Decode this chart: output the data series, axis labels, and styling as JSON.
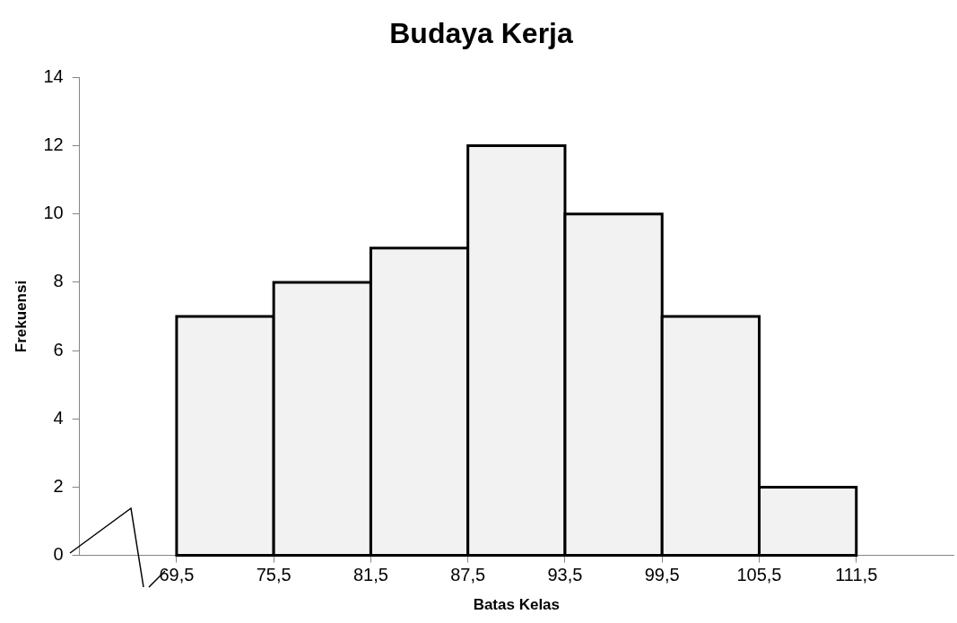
{
  "chart_data": {
    "type": "histogram",
    "title": "Budaya Kerja",
    "xlabel": "Batas Kelas",
    "ylabel": "Frekuensi",
    "bins": [
      69.5,
      75.5,
      81.5,
      87.5,
      93.5,
      99.5,
      105.5,
      111.5
    ],
    "values": [
      7,
      8,
      9,
      12,
      10,
      7,
      2
    ],
    "color": "#f2f2f2",
    "xlim": [
      63.5,
      117.5
    ],
    "xticks": [
      {
        "value": 69.5,
        "label": "69,5"
      },
      {
        "value": 75.5,
        "label": "75,5"
      },
      {
        "value": 81.5,
        "label": "81,5"
      },
      {
        "value": 87.5,
        "label": "87,5"
      },
      {
        "value": 93.5,
        "label": "93,5"
      },
      {
        "value": 99.5,
        "label": "99,5"
      },
      {
        "value": 105.5,
        "label": "105,5"
      },
      {
        "value": 111.5,
        "label": "111,5"
      }
    ],
    "ylim": [
      0,
      14
    ],
    "yticks": [
      0,
      2,
      4,
      6,
      8,
      10,
      12,
      14
    ],
    "grid": false,
    "legend": false
  }
}
